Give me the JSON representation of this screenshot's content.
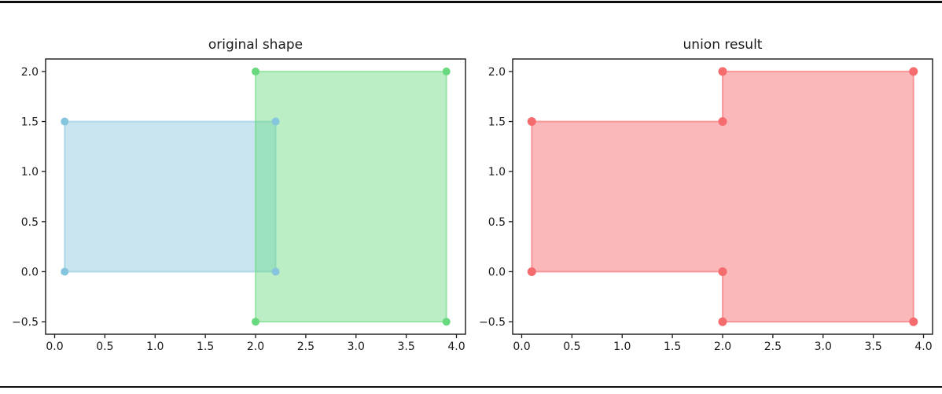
{
  "figure": {
    "background": "#ffffff",
    "top_border_color": "#0d0d0d",
    "bottom_border_color": "#0d0d0d",
    "axis_color": "#1a1a1a",
    "text_color": "#1a1a1a"
  },
  "chart_data": [
    {
      "type": "polygon-plot",
      "title": "original shape",
      "xlim": [
        -0.09,
        4.09
      ],
      "ylim": [
        -0.625,
        2.125
      ],
      "xticks": [
        0.0,
        0.5,
        1.0,
        1.5,
        2.0,
        2.5,
        3.0,
        3.5,
        4.0
      ],
      "yticks": [
        -0.5,
        0.0,
        0.5,
        1.0,
        1.5,
        2.0
      ],
      "grid": false,
      "legend": false,
      "shapes": [
        {
          "name": "blue-rectangle",
          "vertices": [
            [
              0.1,
              0.0
            ],
            [
              2.2,
              0.0
            ],
            [
              2.2,
              1.5
            ],
            [
              0.1,
              1.5
            ]
          ],
          "color": "#85C5DD",
          "fill_alpha": 0.45,
          "edge_alpha": 0.55,
          "marker_radius": 5
        },
        {
          "name": "green-rectangle",
          "vertices": [
            [
              2.0,
              -0.5
            ],
            [
              3.9,
              -0.5
            ],
            [
              3.9,
              2.0
            ],
            [
              2.0,
              2.0
            ]
          ],
          "color": "#68D97E",
          "fill_alpha": 0.45,
          "edge_alpha": 0.55,
          "marker_radius": 5
        }
      ]
    },
    {
      "type": "polygon-plot",
      "title": "union result",
      "xlim": [
        -0.09,
        4.09
      ],
      "ylim": [
        -0.625,
        2.125
      ],
      "xticks": [
        0.0,
        0.5,
        1.0,
        1.5,
        2.0,
        2.5,
        3.0,
        3.5,
        4.0
      ],
      "yticks": [
        -0.5,
        0.0,
        0.5,
        1.0,
        1.5,
        2.0
      ],
      "grid": false,
      "legend": false,
      "shapes": [
        {
          "name": "union-polygon",
          "vertices": [
            [
              0.1,
              0.0
            ],
            [
              2.0,
              0.0
            ],
            [
              2.0,
              -0.5
            ],
            [
              3.9,
              -0.5
            ],
            [
              3.9,
              2.0
            ],
            [
              2.0,
              2.0
            ],
            [
              2.0,
              1.5
            ],
            [
              0.1,
              1.5
            ]
          ],
          "color": "#F56B6E",
          "fill_alpha": 0.48,
          "edge_alpha": 0.6,
          "marker_radius": 5.5
        }
      ]
    }
  ]
}
